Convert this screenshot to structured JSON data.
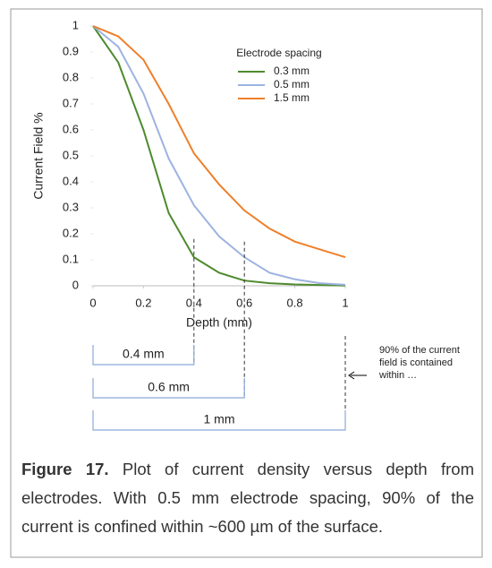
{
  "chart_data": {
    "type": "line",
    "y_label": "Current Field %",
    "x_label": "Depth (mm)",
    "legend_title": "Electrode spacing",
    "x": [
      0,
      0.1,
      0.2,
      0.3,
      0.4,
      0.5,
      0.6,
      0.7,
      0.8,
      0.9,
      1
    ],
    "series": [
      {
        "name": "0.3 mm",
        "color": "#4e8a2e",
        "values": [
          1,
          0.86,
          0.6,
          0.28,
          0.11,
          0.05,
          0.02,
          0.01,
          0.005,
          0.003,
          0.001
        ]
      },
      {
        "name": "0.5 mm",
        "color": "#9db3e0",
        "values": [
          1,
          0.92,
          0.74,
          0.49,
          0.31,
          0.19,
          0.11,
          0.05,
          0.025,
          0.01,
          0.004
        ]
      },
      {
        "name": "1.5 mm",
        "color": "#ef7f2a",
        "values": [
          1,
          0.96,
          0.87,
          0.7,
          0.51,
          0.39,
          0.29,
          0.22,
          0.17,
          0.14,
          0.11
        ]
      }
    ],
    "xlim": [
      0,
      1
    ],
    "ylim": [
      0,
      1
    ],
    "xticks": [
      0,
      0.2,
      0.4,
      0.6,
      0.8,
      1
    ],
    "yticks": [
      0,
      0.1,
      0.2,
      0.3,
      0.4,
      0.5,
      0.6,
      0.7,
      0.8,
      0.9,
      1
    ],
    "grid": false,
    "brackets": [
      {
        "label": "0.4 mm",
        "to": 0.4,
        "dash_top": 0.18
      },
      {
        "label": "0.6 mm",
        "to": 0.6,
        "dash_top": 0.17
      },
      {
        "label": "1 mm",
        "to": 1,
        "dash_top": null
      }
    ],
    "note": "90% of the current field is contained within …"
  },
  "caption": {
    "label": "Figure 17.",
    "text": "Plot of current density versus depth from electrodes. With 0.5 mm electrode spacing, 90% of the current is confined within ~600 µm of the surface."
  }
}
